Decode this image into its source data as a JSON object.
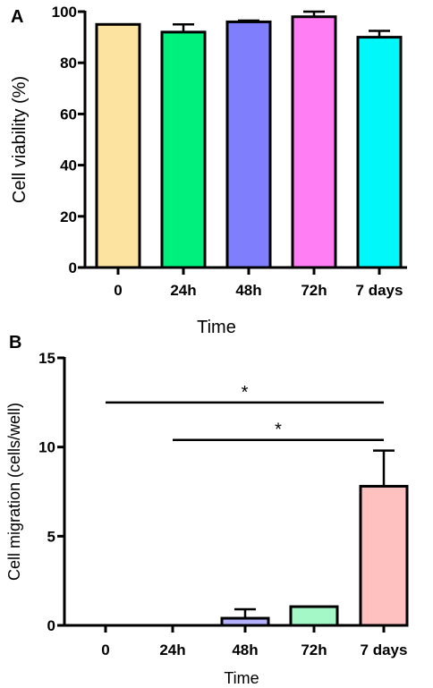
{
  "chart_data": [
    {
      "panel_label": "A",
      "type": "bar",
      "categories": [
        "0",
        "24h",
        "48h",
        "72h",
        "7 days"
      ],
      "values": [
        95,
        92,
        96,
        98,
        90
      ],
      "errors": [
        0,
        3,
        0.5,
        2,
        2.5
      ],
      "colors": [
        "#fde3a0",
        "#00f07d",
        "#7f7ffe",
        "#ff7ef3",
        "#00f8fa"
      ],
      "xlabel": "Time",
      "ylabel": "Cell viability (%)",
      "ylim": [
        0,
        100
      ],
      "yticks": [
        0,
        20,
        40,
        60,
        80,
        100
      ]
    },
    {
      "panel_label": "B",
      "type": "bar",
      "categories": [
        "0",
        "24h",
        "48h",
        "72h",
        "7 days"
      ],
      "values": [
        0,
        0,
        0.4,
        1.05,
        7.8
      ],
      "errors": [
        0,
        0,
        0.5,
        0,
        2
      ],
      "colors": [
        "#ffffff",
        "#ffffff",
        "#b3b3ff",
        "#a4f7c7",
        "#ffc0c0"
      ],
      "xlabel": "Time",
      "ylabel": "Cell migration (cells/well)",
      "ylim": [
        0,
        15
      ],
      "yticks": [
        0,
        5,
        10,
        15
      ],
      "significance": [
        {
          "from": "0",
          "to": "7 days",
          "y": 12.5,
          "label": "*"
        },
        {
          "from": "24h",
          "to": "7 days",
          "y": 10.4,
          "label": "*"
        }
      ]
    }
  ]
}
